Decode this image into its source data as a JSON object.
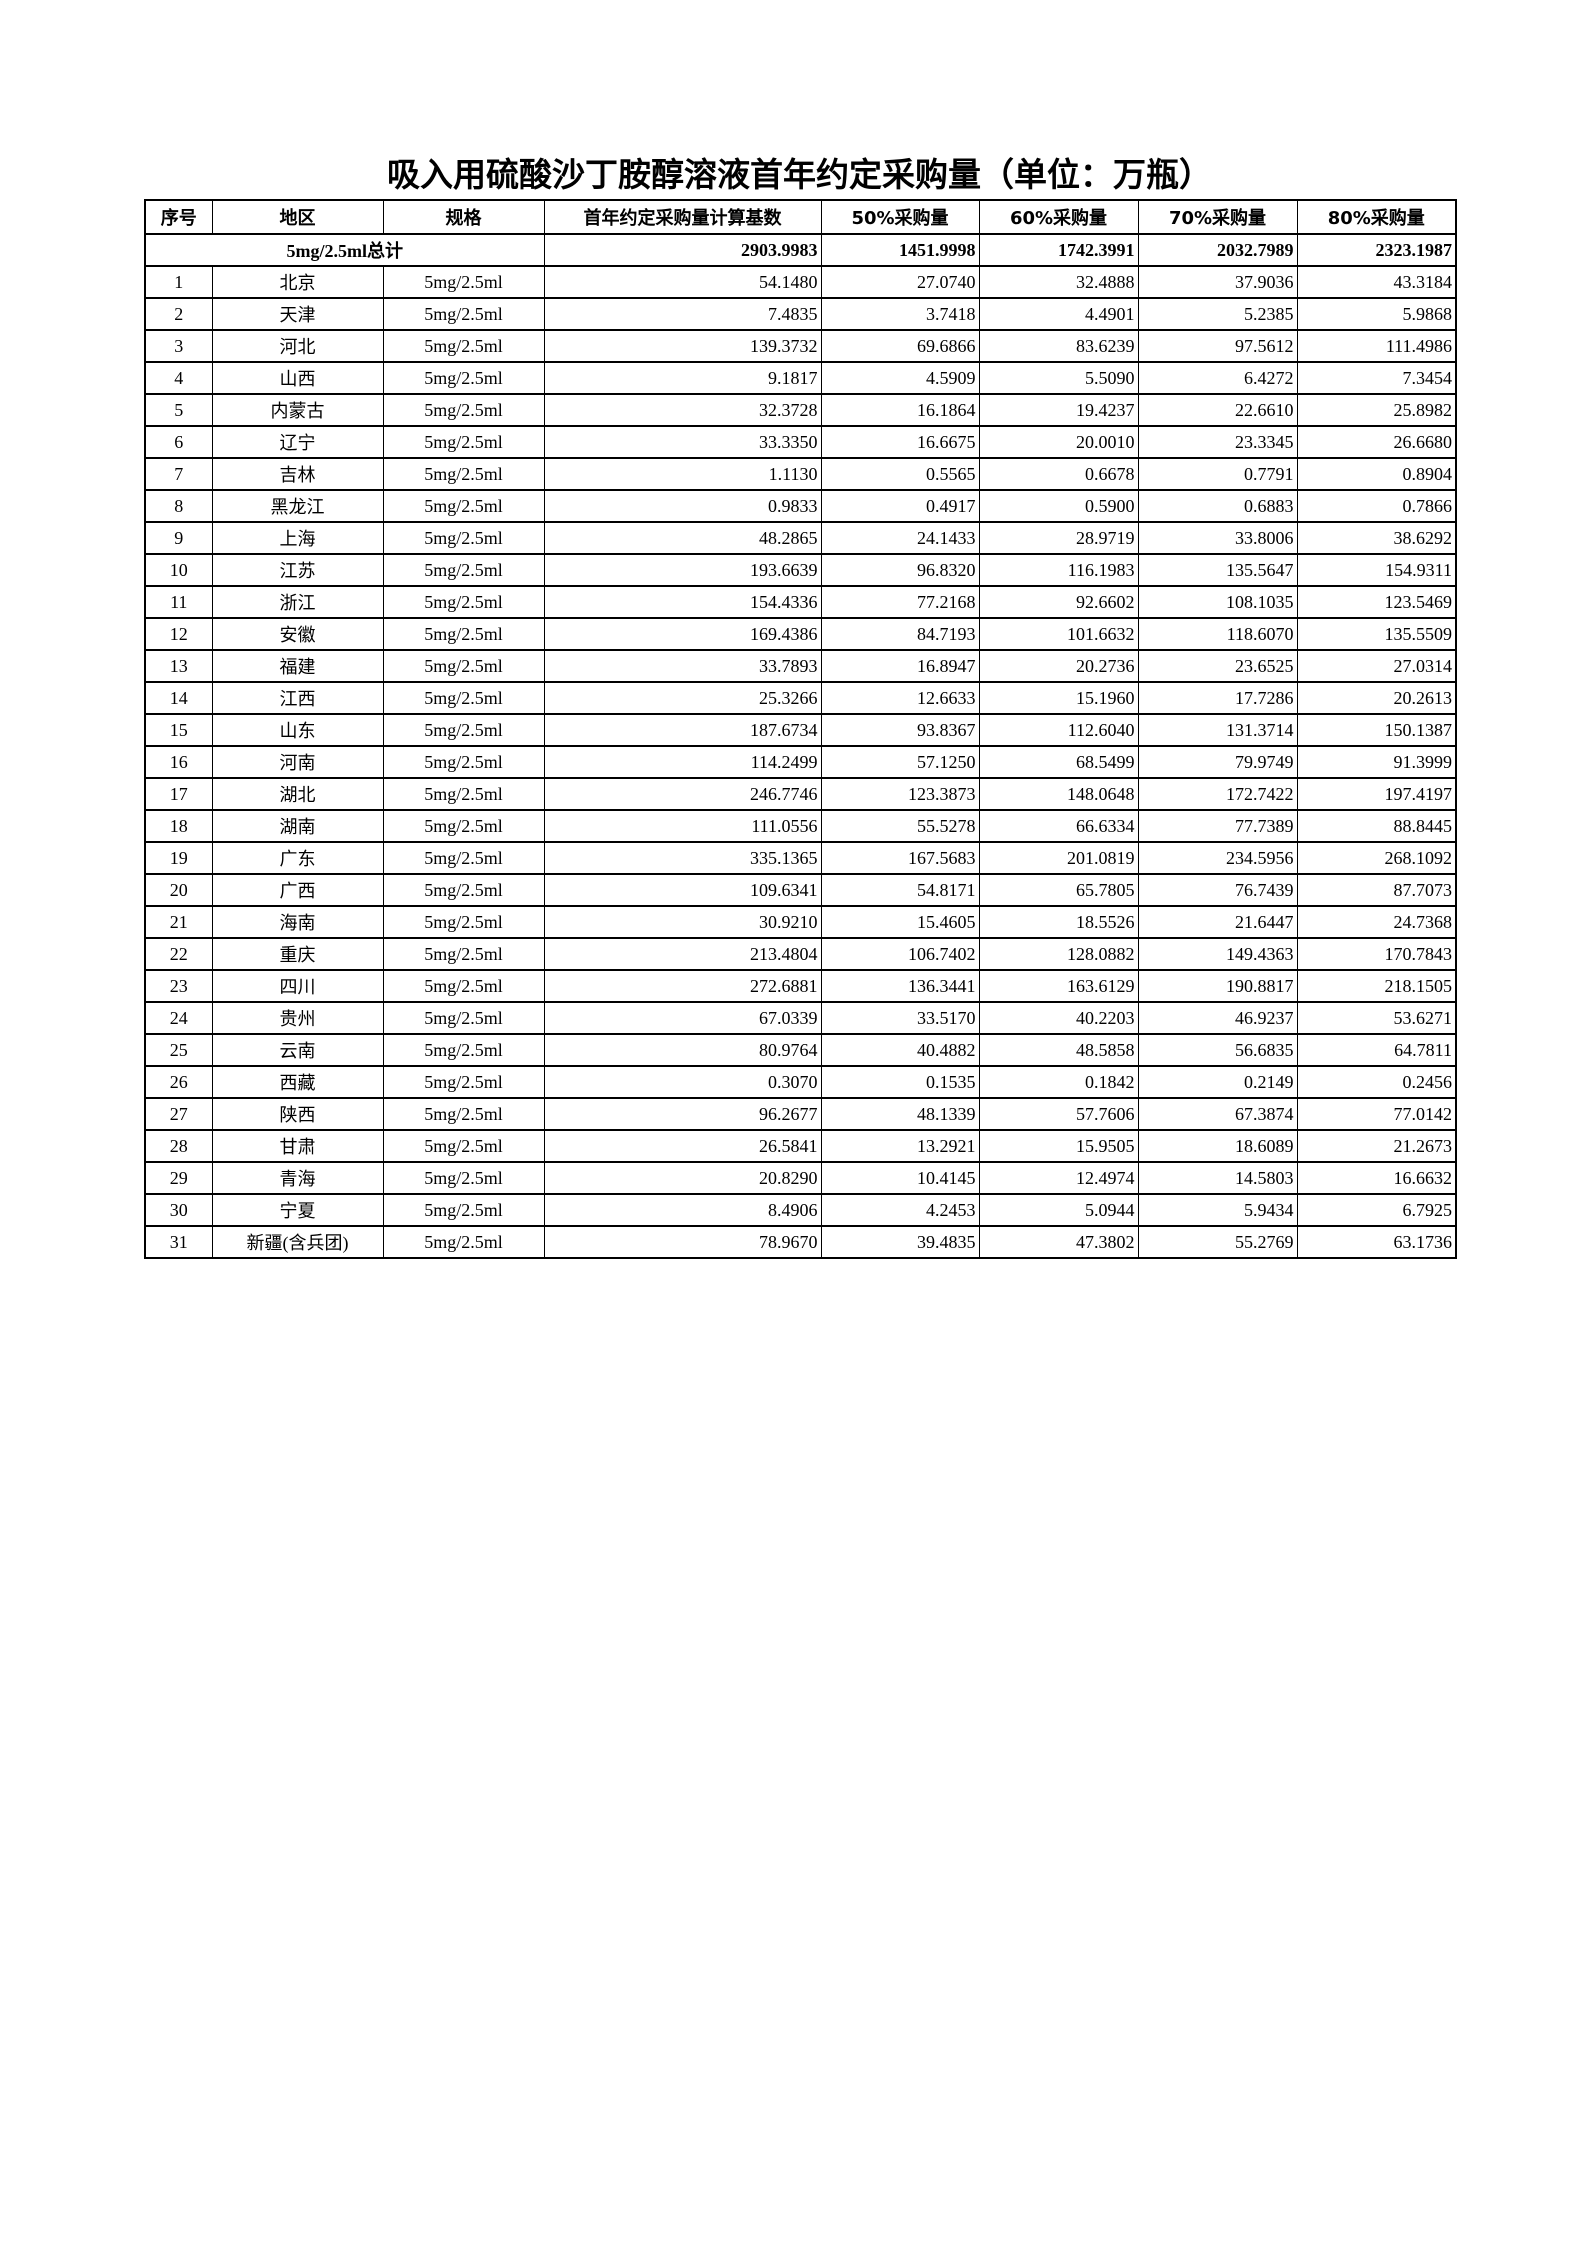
{
  "title": "吸入用硫酸沙丁胺醇溶液首年约定采购量（单位：万瓶）",
  "headers": [
    "序号",
    "地区",
    "规格",
    "首年约定采购量计算基数",
    "50%采购量",
    "60%采购量",
    "70%采购量",
    "80%采购量"
  ],
  "total": {
    "label": "5mg/2.5ml总计",
    "values": [
      "2903.9983",
      "1451.9998",
      "1742.3991",
      "2032.7989",
      "2323.1987"
    ]
  },
  "rows": [
    [
      "1",
      "北京",
      "5mg/2.5ml",
      "54.1480",
      "27.0740",
      "32.4888",
      "37.9036",
      "43.3184"
    ],
    [
      "2",
      "天津",
      "5mg/2.5ml",
      "7.4835",
      "3.7418",
      "4.4901",
      "5.2385",
      "5.9868"
    ],
    [
      "3",
      "河北",
      "5mg/2.5ml",
      "139.3732",
      "69.6866",
      "83.6239",
      "97.5612",
      "111.4986"
    ],
    [
      "4",
      "山西",
      "5mg/2.5ml",
      "9.1817",
      "4.5909",
      "5.5090",
      "6.4272",
      "7.3454"
    ],
    [
      "5",
      "内蒙古",
      "5mg/2.5ml",
      "32.3728",
      "16.1864",
      "19.4237",
      "22.6610",
      "25.8982"
    ],
    [
      "6",
      "辽宁",
      "5mg/2.5ml",
      "33.3350",
      "16.6675",
      "20.0010",
      "23.3345",
      "26.6680"
    ],
    [
      "7",
      "吉林",
      "5mg/2.5ml",
      "1.1130",
      "0.5565",
      "0.6678",
      "0.7791",
      "0.8904"
    ],
    [
      "8",
      "黑龙江",
      "5mg/2.5ml",
      "0.9833",
      "0.4917",
      "0.5900",
      "0.6883",
      "0.7866"
    ],
    [
      "9",
      "上海",
      "5mg/2.5ml",
      "48.2865",
      "24.1433",
      "28.9719",
      "33.8006",
      "38.6292"
    ],
    [
      "10",
      "江苏",
      "5mg/2.5ml",
      "193.6639",
      "96.8320",
      "116.1983",
      "135.5647",
      "154.9311"
    ],
    [
      "11",
      "浙江",
      "5mg/2.5ml",
      "154.4336",
      "77.2168",
      "92.6602",
      "108.1035",
      "123.5469"
    ],
    [
      "12",
      "安徽",
      "5mg/2.5ml",
      "169.4386",
      "84.7193",
      "101.6632",
      "118.6070",
      "135.5509"
    ],
    [
      "13",
      "福建",
      "5mg/2.5ml",
      "33.7893",
      "16.8947",
      "20.2736",
      "23.6525",
      "27.0314"
    ],
    [
      "14",
      "江西",
      "5mg/2.5ml",
      "25.3266",
      "12.6633",
      "15.1960",
      "17.7286",
      "20.2613"
    ],
    [
      "15",
      "山东",
      "5mg/2.5ml",
      "187.6734",
      "93.8367",
      "112.6040",
      "131.3714",
      "150.1387"
    ],
    [
      "16",
      "河南",
      "5mg/2.5ml",
      "114.2499",
      "57.1250",
      "68.5499",
      "79.9749",
      "91.3999"
    ],
    [
      "17",
      "湖北",
      "5mg/2.5ml",
      "246.7746",
      "123.3873",
      "148.0648",
      "172.7422",
      "197.4197"
    ],
    [
      "18",
      "湖南",
      "5mg/2.5ml",
      "111.0556",
      "55.5278",
      "66.6334",
      "77.7389",
      "88.8445"
    ],
    [
      "19",
      "广东",
      "5mg/2.5ml",
      "335.1365",
      "167.5683",
      "201.0819",
      "234.5956",
      "268.1092"
    ],
    [
      "20",
      "广西",
      "5mg/2.5ml",
      "109.6341",
      "54.8171",
      "65.7805",
      "76.7439",
      "87.7073"
    ],
    [
      "21",
      "海南",
      "5mg/2.5ml",
      "30.9210",
      "15.4605",
      "18.5526",
      "21.6447",
      "24.7368"
    ],
    [
      "22",
      "重庆",
      "5mg/2.5ml",
      "213.4804",
      "106.7402",
      "128.0882",
      "149.4363",
      "170.7843"
    ],
    [
      "23",
      "四川",
      "5mg/2.5ml",
      "272.6881",
      "136.3441",
      "163.6129",
      "190.8817",
      "218.1505"
    ],
    [
      "24",
      "贵州",
      "5mg/2.5ml",
      "67.0339",
      "33.5170",
      "40.2203",
      "46.9237",
      "53.6271"
    ],
    [
      "25",
      "云南",
      "5mg/2.5ml",
      "80.9764",
      "40.4882",
      "48.5858",
      "56.6835",
      "64.7811"
    ],
    [
      "26",
      "西藏",
      "5mg/2.5ml",
      "0.3070",
      "0.1535",
      "0.1842",
      "0.2149",
      "0.2456"
    ],
    [
      "27",
      "陕西",
      "5mg/2.5ml",
      "96.2677",
      "48.1339",
      "57.7606",
      "67.3874",
      "77.0142"
    ],
    [
      "28",
      "甘肃",
      "5mg/2.5ml",
      "26.5841",
      "13.2921",
      "15.9505",
      "18.6089",
      "21.2673"
    ],
    [
      "29",
      "青海",
      "5mg/2.5ml",
      "20.8290",
      "10.4145",
      "12.4974",
      "14.5803",
      "16.6632"
    ],
    [
      "30",
      "宁夏",
      "5mg/2.5ml",
      "8.4906",
      "4.2453",
      "5.0944",
      "5.9434",
      "6.7925"
    ],
    [
      "31",
      "新疆(含兵团)",
      "5mg/2.5ml",
      "78.9670",
      "39.4835",
      "47.3802",
      "55.2769",
      "63.1736"
    ]
  ]
}
